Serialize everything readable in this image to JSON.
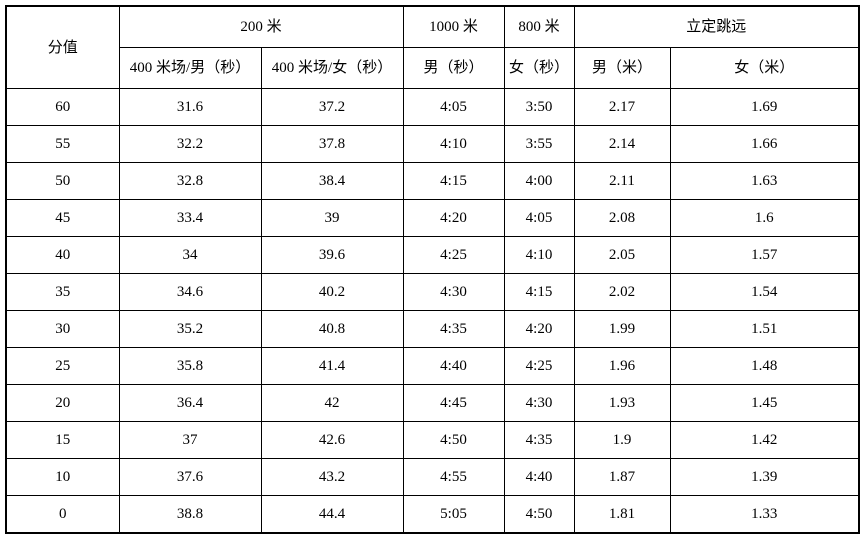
{
  "table": {
    "header": {
      "score_label": "分值",
      "group_200m": "200 米",
      "group_1000m": "1000 米",
      "group_800m": "800 米",
      "group_standing_jump": "立定跳远",
      "col_400_track_male": "400 米场/男（秒）",
      "col_400_track_female": "400 米场/女（秒）",
      "col_1000_male": "男（秒）",
      "col_800_female": "女（秒）",
      "col_jump_male": "男（米）",
      "col_jump_female": "女（米）"
    },
    "rows": [
      [
        "60",
        "31.6",
        "37.2",
        "4:05",
        "3:50",
        "2.17",
        "1.69"
      ],
      [
        "55",
        "32.2",
        "37.8",
        "4:10",
        "3:55",
        "2.14",
        "1.66"
      ],
      [
        "50",
        "32.8",
        "38.4",
        "4:15",
        "4:00",
        "2.11",
        "1.63"
      ],
      [
        "45",
        "33.4",
        "39",
        "4:20",
        "4:05",
        "2.08",
        "1.6"
      ],
      [
        "40",
        "34",
        "39.6",
        "4:25",
        "4:10",
        "2.05",
        "1.57"
      ],
      [
        "35",
        "34.6",
        "40.2",
        "4:30",
        "4:15",
        "2.02",
        "1.54"
      ],
      [
        "30",
        "35.2",
        "40.8",
        "4:35",
        "4:20",
        "1.99",
        "1.51"
      ],
      [
        "25",
        "35.8",
        "41.4",
        "4:40",
        "4:25",
        "1.96",
        "1.48"
      ],
      [
        "20",
        "36.4",
        "42",
        "4:45",
        "4:30",
        "1.93",
        "1.45"
      ],
      [
        "15",
        "37",
        "42.6",
        "4:50",
        "4:35",
        "1.9",
        "1.42"
      ],
      [
        "10",
        "37.6",
        "43.2",
        "4:55",
        "4:40",
        "1.87",
        "1.39"
      ],
      [
        "0",
        "38.8",
        "44.4",
        "5:05",
        "4:50",
        "1.81",
        "1.33"
      ]
    ],
    "colors": {
      "border": "#000000",
      "text": "#000000",
      "background": "#ffffff"
    }
  }
}
